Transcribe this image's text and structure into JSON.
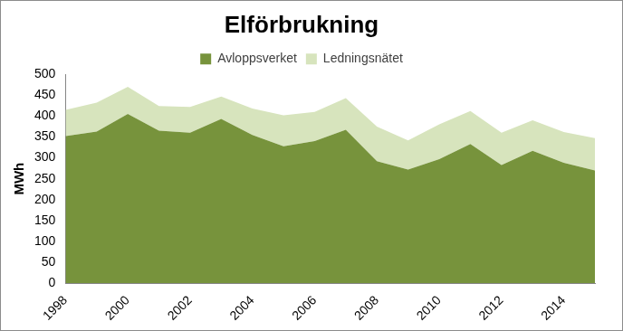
{
  "chart_data": {
    "type": "area",
    "title": "Elförbrukning",
    "y_label": "MWh",
    "categories": [
      "1998",
      null,
      "2000",
      null,
      "2002",
      null,
      "2004",
      null,
      "2006",
      null,
      "2008",
      null,
      "2010",
      null,
      "2012",
      null,
      "2014",
      null
    ],
    "series": [
      {
        "name": "Avloppsverket",
        "color": "#77933c",
        "values": [
          352,
          363,
          405,
          365,
          360,
          393,
          355,
          328,
          340,
          367,
          292,
          272,
          297,
          333,
          283,
          317,
          288,
          270
        ]
      },
      {
        "name": "Ledningsnätet",
        "color": "#d7e4bd",
        "values": [
          63,
          69,
          65,
          59,
          62,
          54,
          63,
          74,
          70,
          76,
          83,
          70,
          83,
          79,
          77,
          73,
          74,
          77
        ]
      }
    ],
    "ylim": [
      0,
      500
    ],
    "yticks": [
      0,
      50,
      100,
      150,
      200,
      250,
      300,
      350,
      400,
      450,
      500
    ],
    "stacked": true,
    "grid": false,
    "legend": "top"
  }
}
